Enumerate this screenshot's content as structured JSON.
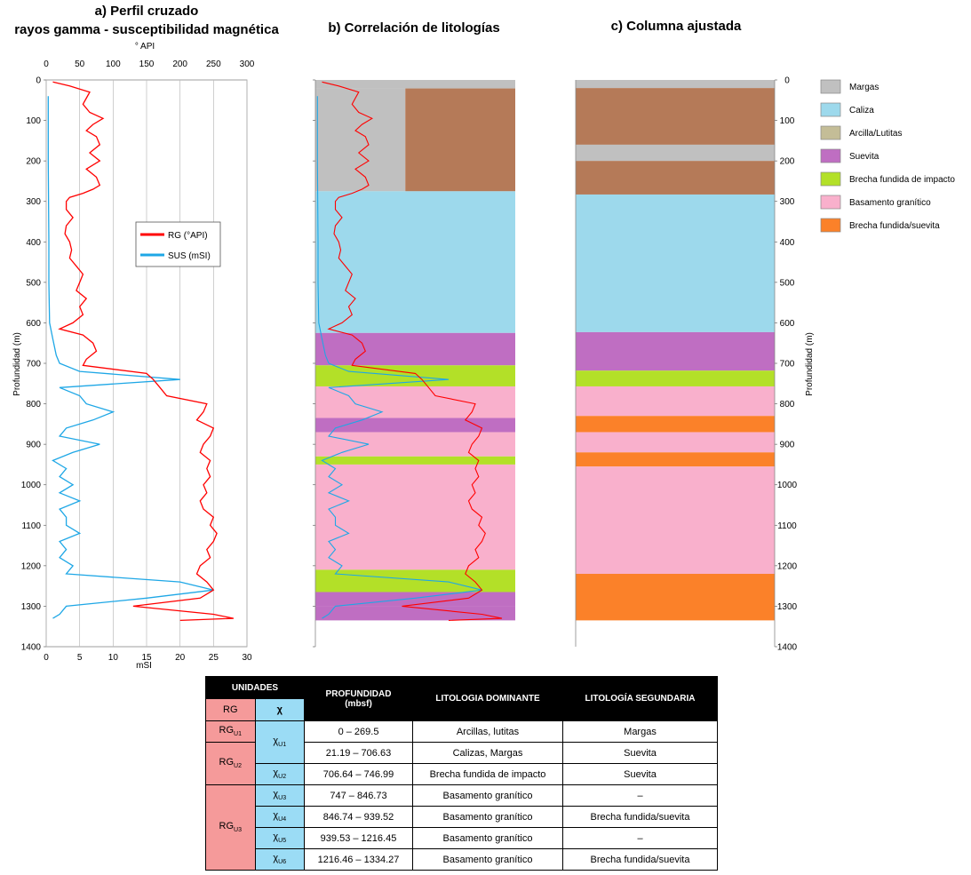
{
  "titles": {
    "a_line1": "a) Perfil cruzado",
    "a_line2": "rayos gamma - susceptibilidad magnética",
    "b": "b) Correlación de litologías",
    "c": "c) Columna ajustada"
  },
  "colors": {
    "rg": "#ff0000",
    "sus": "#1ea7e6",
    "Margas": "#c0c0c0",
    "Caliza": "#9dd9ec",
    "Arcilla/Lutitas": "#c4bd97",
    "Suevita": "#bf6ec2",
    "Brecha fundida de impacto": "#b3e028",
    "Basamento granítico": "#f9b0cc",
    "Brecha fundida/suevita": "#fb8129",
    "brown": "#b57a58"
  },
  "chart_data": [
    {
      "type": "line",
      "panel": "a",
      "x_top_label": "° API",
      "x_top_ticks": [
        "0",
        "50",
        "100",
        "150",
        "200",
        "250",
        "300"
      ],
      "x_top_lim": [
        0,
        300
      ],
      "x_bottom_label": "mSI",
      "x_bottom_ticks": [
        "0",
        "5",
        "10",
        "15",
        "20",
        "25",
        "30"
      ],
      "x_bottom_lim": [
        0,
        30
      ],
      "ylabel": "Profundidad (m)",
      "y_ticks": [
        "0",
        "100",
        "200",
        "300",
        "400",
        "500",
        "600",
        "700",
        "800",
        "900",
        "1000",
        "1100",
        "1200",
        "1300",
        "1400"
      ],
      "ylim": [
        0,
        1400
      ],
      "legend_position": "middle-right",
      "series": [
        {
          "name": "RG (°API)",
          "axis": "top",
          "points": [
            [
              10,
              5
            ],
            [
              35,
              15
            ],
            [
              65,
              30
            ],
            [
              60,
              45
            ],
            [
              55,
              60
            ],
            [
              65,
              80
            ],
            [
              85,
              95
            ],
            [
              70,
              110
            ],
            [
              60,
              125
            ],
            [
              75,
              140
            ],
            [
              80,
              160
            ],
            [
              65,
              180
            ],
            [
              80,
              200
            ],
            [
              60,
              220
            ],
            [
              75,
              240
            ],
            [
              80,
              260
            ],
            [
              70,
              270
            ],
            [
              55,
              280
            ],
            [
              35,
              290
            ],
            [
              30,
              300
            ],
            [
              30,
              320
            ],
            [
              40,
              340
            ],
            [
              30,
              360
            ],
            [
              28,
              380
            ],
            [
              35,
              400
            ],
            [
              38,
              420
            ],
            [
              35,
              440
            ],
            [
              45,
              460
            ],
            [
              55,
              480
            ],
            [
              50,
              500
            ],
            [
              45,
              520
            ],
            [
              60,
              540
            ],
            [
              50,
              560
            ],
            [
              55,
              580
            ],
            [
              40,
              600
            ],
            [
              20,
              615
            ],
            [
              55,
              630
            ],
            [
              70,
              650
            ],
            [
              75,
              670
            ],
            [
              60,
              690
            ],
            [
              55,
              705
            ],
            [
              150,
              725
            ],
            [
              160,
              740
            ],
            [
              170,
              760
            ],
            [
              180,
              780
            ],
            [
              240,
              800
            ],
            [
              235,
              820
            ],
            [
              225,
              840
            ],
            [
              250,
              860
            ],
            [
              245,
              880
            ],
            [
              235,
              900
            ],
            [
              230,
              920
            ],
            [
              245,
              940
            ],
            [
              240,
              960
            ],
            [
              245,
              980
            ],
            [
              235,
              1000
            ],
            [
              240,
              1020
            ],
            [
              230,
              1040
            ],
            [
              235,
              1060
            ],
            [
              250,
              1080
            ],
            [
              245,
              1100
            ],
            [
              255,
              1120
            ],
            [
              250,
              1140
            ],
            [
              240,
              1160
            ],
            [
              245,
              1180
            ],
            [
              230,
              1200
            ],
            [
              225,
              1220
            ],
            [
              240,
              1240
            ],
            [
              250,
              1260
            ],
            [
              230,
              1280
            ],
            [
              130,
              1300
            ],
            [
              250,
              1320
            ],
            [
              280,
              1330
            ],
            [
              200,
              1335
            ]
          ]
        },
        {
          "name": "SUS (mSI)",
          "axis": "bottom",
          "points": [
            [
              0.3,
              40
            ],
            [
              0.3,
              200
            ],
            [
              0.4,
              400
            ],
            [
              0.4,
              500
            ],
            [
              0.5,
              600
            ],
            [
              1.0,
              640
            ],
            [
              1.5,
              680
            ],
            [
              2.0,
              700
            ],
            [
              5,
              720
            ],
            [
              20,
              740
            ],
            [
              2,
              760
            ],
            [
              5,
              780
            ],
            [
              6,
              800
            ],
            [
              10,
              820
            ],
            [
              7,
              840
            ],
            [
              3,
              860
            ],
            [
              2,
              880
            ],
            [
              8,
              900
            ],
            [
              4,
              920
            ],
            [
              1,
              940
            ],
            [
              3,
              960
            ],
            [
              2,
              980
            ],
            [
              4,
              1000
            ],
            [
              2,
              1020
            ],
            [
              5,
              1040
            ],
            [
              2,
              1060
            ],
            [
              3,
              1080
            ],
            [
              3,
              1100
            ],
            [
              5,
              1120
            ],
            [
              2,
              1140
            ],
            [
              3,
              1160
            ],
            [
              2,
              1180
            ],
            [
              4,
              1200
            ],
            [
              3,
              1220
            ],
            [
              20,
              1240
            ],
            [
              25,
              1260
            ],
            [
              15,
              1280
            ],
            [
              3,
              1300
            ],
            [
              2,
              1320
            ],
            [
              1,
              1330
            ]
          ]
        }
      ]
    },
    {
      "type": "area",
      "panel": "b",
      "y_tick_labels_shown": false,
      "ylim": [
        0,
        1400
      ],
      "intervals": [
        {
          "top": 0,
          "bottom": 21,
          "class": "Margas"
        },
        {
          "top": 21,
          "bottom": 275,
          "class": "Margas/brown"
        },
        {
          "top": 275,
          "bottom": 625,
          "class": "Caliza"
        },
        {
          "top": 625,
          "bottom": 705,
          "class": "Suevita"
        },
        {
          "top": 705,
          "bottom": 757,
          "class": "Brecha fundida de impacto"
        },
        {
          "top": 757,
          "bottom": 835,
          "class": "Basamento granítico"
        },
        {
          "top": 835,
          "bottom": 870,
          "class": "Suevita"
        },
        {
          "top": 870,
          "bottom": 930,
          "class": "Basamento granítico"
        },
        {
          "top": 930,
          "bottom": 950,
          "class": "Brecha fundida de impacto"
        },
        {
          "top": 950,
          "bottom": 1210,
          "class": "Basamento granítico"
        },
        {
          "top": 1210,
          "bottom": 1265,
          "class": "Brecha fundida de impacto"
        },
        {
          "top": 1265,
          "bottom": 1300,
          "class": "Suevita"
        },
        {
          "top": 1300,
          "bottom": 1335,
          "class": "Suevita"
        }
      ]
    },
    {
      "type": "area",
      "panel": "c",
      "ylabel": "Profundidad (m)",
      "y_ticks": [
        "0",
        "100",
        "200",
        "300",
        "400",
        "500",
        "600",
        "700",
        "800",
        "900",
        "1000",
        "1100",
        "1200",
        "1300",
        "1400"
      ],
      "ylim": [
        0,
        1400
      ],
      "intervals": [
        {
          "top": 0,
          "bottom": 20,
          "class": "Margas"
        },
        {
          "top": 20,
          "bottom": 160,
          "class": "brown"
        },
        {
          "top": 160,
          "bottom": 200,
          "class": "Margas"
        },
        {
          "top": 200,
          "bottom": 283,
          "class": "brown"
        },
        {
          "top": 283,
          "bottom": 623,
          "class": "Caliza"
        },
        {
          "top": 623,
          "bottom": 718,
          "class": "Suevita"
        },
        {
          "top": 718,
          "bottom": 757,
          "class": "Brecha fundida de impacto"
        },
        {
          "top": 757,
          "bottom": 830,
          "class": "Basamento granítico"
        },
        {
          "top": 830,
          "bottom": 870,
          "class": "Brecha fundida/suevita"
        },
        {
          "top": 870,
          "bottom": 920,
          "class": "Basamento granítico"
        },
        {
          "top": 920,
          "bottom": 955,
          "class": "Brecha fundida/suevita"
        },
        {
          "top": 955,
          "bottom": 1220,
          "class": "Basamento granítico"
        },
        {
          "top": 1220,
          "bottom": 1335,
          "class": "Brecha fundida/suevita"
        }
      ],
      "legend": [
        "Margas",
        "Caliza",
        "Arcilla/Lutitas",
        "Suevita",
        "Brecha fundida de impacto",
        "Basamento granítico",
        "Brecha fundida/suevita"
      ]
    },
    {
      "type": "table",
      "headers": {
        "unidades": "UNIDADES",
        "rg": "RG",
        "chi": "χ",
        "profundidad": "PROFUNDIDAD",
        "profundidad_unit": "(mbsf)",
        "dominante": "LITOLOGIA DOMINANTE",
        "segundaria": "LITOLOGÍA SEGUNDARIA"
      },
      "rows": [
        {
          "rg": "RG",
          "rg_sub": "U1",
          "chi": "χ",
          "chi_sub": "U1",
          "depth": "0 – 269.5",
          "dominante": "Arcillas, lutitas",
          "segundaria": "Margas"
        },
        {
          "rg": "RG",
          "rg_sub": "U2",
          "chi": "χ",
          "chi_sub": "U1",
          "depth": "21.19 – 706.63",
          "dominante": "Calizas, Margas",
          "segundaria": "Suevita"
        },
        {
          "rg": "RG",
          "rg_sub": "U2",
          "chi": "χ",
          "chi_sub": "U2",
          "depth": "706.64 – 746.99",
          "dominante": "Brecha fundida de impacto",
          "segundaria": "Suevita"
        },
        {
          "rg": "RG",
          "rg_sub": "U3",
          "chi": "χ",
          "chi_sub": "U3",
          "depth": "747 – 846.73",
          "dominante": "Basamento granítico",
          "segundaria": "–"
        },
        {
          "rg": "RG",
          "rg_sub": "U3",
          "chi": "χ",
          "chi_sub": "U4",
          "depth": "846.74 – 939.52",
          "dominante": "Basamento granítico",
          "segundaria": "Brecha fundida/suevita"
        },
        {
          "rg": "RG",
          "rg_sub": "U3",
          "chi": "χ",
          "chi_sub": "U5",
          "depth": "939.53 – 1216.45",
          "dominante": "Basamento granítico",
          "segundaria": "–"
        },
        {
          "rg": "RG",
          "rg_sub": "U3",
          "chi": "χ",
          "chi_sub": "U6",
          "depth": "1216.46 – 1334.27",
          "dominante": "Basamento granítico",
          "segundaria": "Brecha fundida/suevita"
        }
      ]
    }
  ]
}
